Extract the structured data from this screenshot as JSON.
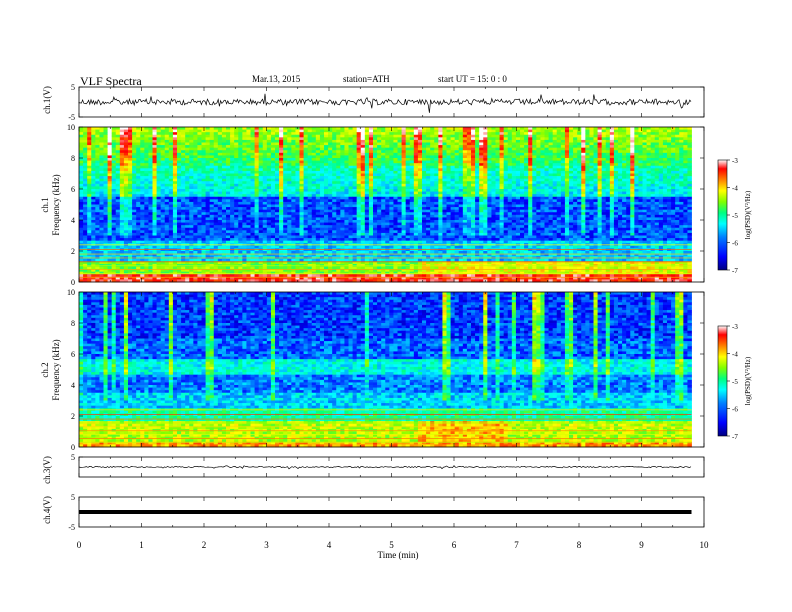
{
  "header": {
    "title": "VLF  Spectra",
    "date": "Mar.13, 2015",
    "station": "station=ATH",
    "start": "start  UT  =   15: 0  : 0"
  },
  "chart_data": {
    "type": "heatmap",
    "x_axis": {
      "label": "Time  (min)",
      "range": [
        0,
        10
      ],
      "ticks": [
        0,
        1,
        2,
        3,
        4,
        5,
        6,
        7,
        8,
        9,
        10
      ],
      "data_end": 9.8
    },
    "panels": [
      {
        "id": "ch1-waveform",
        "type": "line",
        "ylabel": "ch.1(V)",
        "ylim": [
          -5,
          5
        ],
        "ticks": [
          "5",
          "-5"
        ]
      },
      {
        "id": "ch1-spectrogram",
        "type": "heatmap",
        "ylabel_top": "ch.1",
        "ylabel": "Frequency  (kHz)",
        "ylim": [
          0,
          10
        ],
        "ticks": [
          "0",
          "2",
          "4",
          "6",
          "8",
          "10"
        ],
        "colorbar": {
          "label": "log(PSD)(V²/Hz)",
          "range": [
            -7,
            -3
          ],
          "ticks": [
            "-3",
            "-4",
            "-5",
            "-6",
            "-7"
          ]
        }
      },
      {
        "id": "ch2-spectrogram",
        "type": "heatmap",
        "ylabel_top": "ch.2",
        "ylabel": "Frequency  (kHz)",
        "ylim": [
          0,
          10
        ],
        "ticks": [
          "0",
          "2",
          "4",
          "6",
          "8",
          "10"
        ],
        "colorbar": {
          "label": "log(PSD)(V²/Hz)",
          "range": [
            -7,
            -3
          ],
          "ticks": [
            "-3",
            "-4",
            "-5",
            "-6",
            "-7"
          ]
        }
      },
      {
        "id": "ch3-waveform",
        "type": "line",
        "ylabel": "ch.3(V)",
        "ylim": [
          -5,
          5
        ],
        "ticks": [
          "5",
          "-5"
        ]
      },
      {
        "id": "ch4-waveform",
        "type": "line",
        "ylabel": "ch.4(V)",
        "ylim": [
          -5,
          5
        ],
        "ticks": [
          "5",
          "-5"
        ]
      }
    ]
  },
  "colors": {
    "colormap": [
      "#000080",
      "#0000ff",
      "#0080ff",
      "#00ffff",
      "#00ff80",
      "#80ff00",
      "#ffff00",
      "#ff8000",
      "#ff0000",
      "#ffffff"
    ]
  }
}
